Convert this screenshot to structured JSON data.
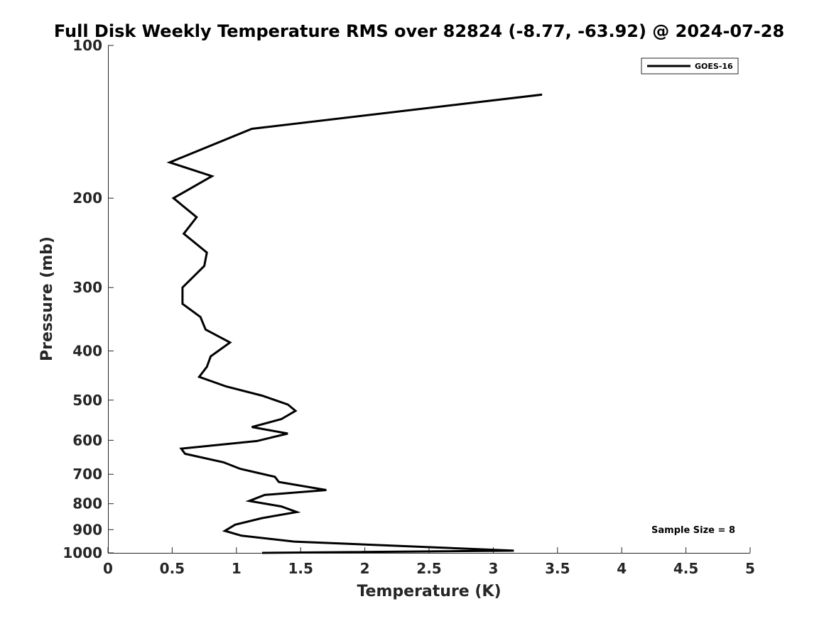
{
  "chart_data": {
    "type": "line",
    "title": "Full Disk Weekly Temperature RMS over 82824 (-8.77, -63.92) @ 2024-07-28",
    "xlabel": "Temperature (K)",
    "ylabel": "Pressure (mb)",
    "xlim": [
      0,
      5
    ],
    "ylim": [
      100,
      1000
    ],
    "y_scale": "log",
    "y_reversed": true,
    "x_ticks": [
      0,
      0.5,
      1,
      1.5,
      2,
      2.5,
      3,
      3.5,
      4,
      4.5,
      5
    ],
    "x_tick_labels": [
      "0",
      "0.5",
      "1",
      "1.5",
      "2",
      "2.5",
      "3",
      "3.5",
      "4",
      "4.5",
      "5"
    ],
    "y_ticks": [
      100,
      200,
      300,
      400,
      500,
      600,
      700,
      800,
      900,
      1000
    ],
    "y_tick_labels": [
      "100",
      "200",
      "300",
      "400",
      "500",
      "600",
      "700",
      "800",
      "900",
      "1000"
    ],
    "grid": false,
    "legend_position": "top-right",
    "annotation": "Sample Size = 8",
    "series": [
      {
        "name": "GOES-16",
        "color": "#000000",
        "x": [
          3.38,
          1.12,
          0.48,
          0.81,
          0.51,
          0.69,
          0.59,
          0.77,
          0.75,
          0.58,
          0.58,
          0.72,
          0.76,
          0.95,
          0.8,
          0.77,
          0.71,
          0.92,
          1.2,
          1.4,
          1.46,
          1.35,
          1.12,
          1.4,
          1.16,
          0.57,
          0.6,
          0.9,
          1.03,
          1.3,
          1.33,
          1.7,
          1.22,
          1.1,
          1.35,
          1.47,
          1.2,
          0.99,
          0.91,
          1.04,
          1.45,
          3.16,
          1.2
        ],
        "y": [
          125,
          146,
          170,
          181,
          200,
          218,
          235,
          256,
          272,
          300,
          323,
          343,
          363,
          385,
          410,
          430,
          450,
          470,
          490,
          510,
          525,
          545,
          565,
          582,
          602,
          623,
          638,
          663,
          683,
          708,
          725,
          752,
          769,
          790,
          810,
          831,
          854,
          880,
          905,
          925,
          950,
          990,
          1000
        ]
      }
    ]
  }
}
